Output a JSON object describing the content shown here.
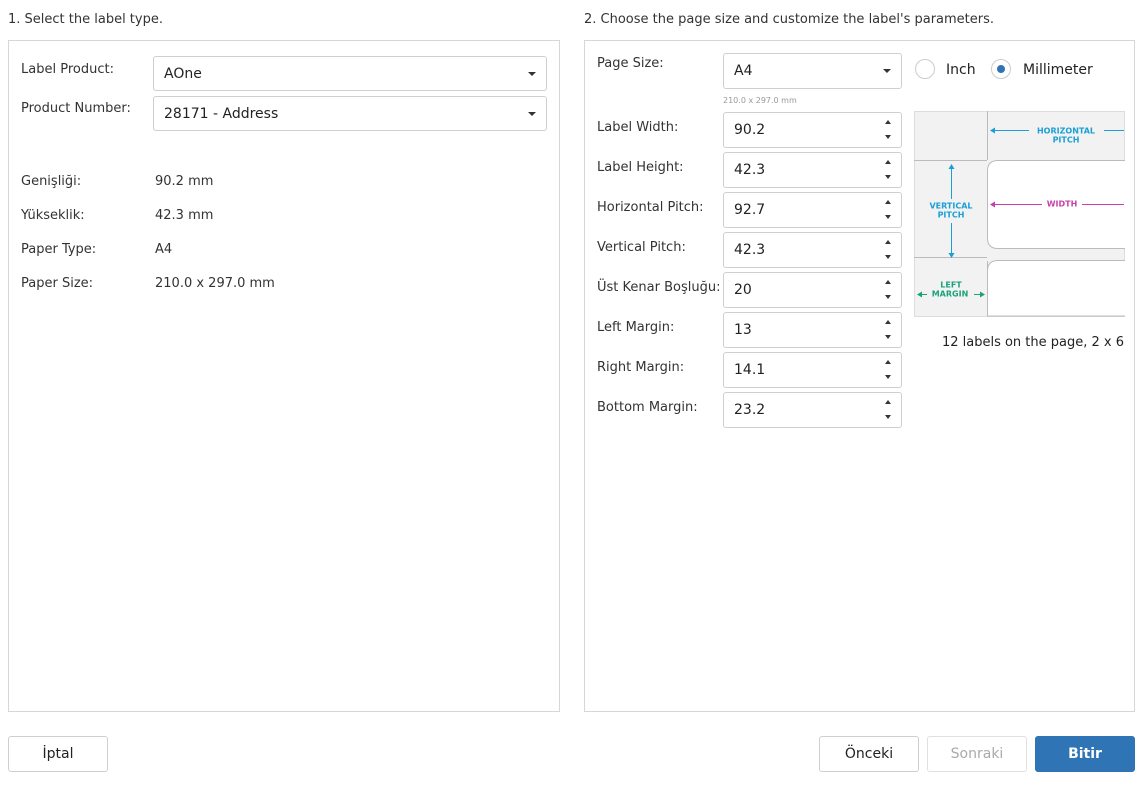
{
  "left": {
    "heading": "1. Select the label type.",
    "label_product": {
      "label": "Label Product:",
      "value": "AOne"
    },
    "product_number": {
      "label": "Product Number:",
      "value": "28171 - Address"
    },
    "info": [
      [
        "Genişliği:",
        "90.2 mm"
      ],
      [
        "Yükseklik:",
        "42.3 mm"
      ],
      [
        "Paper Type:",
        "A4"
      ],
      [
        "Paper Size:",
        "210.0 x 297.0 mm"
      ]
    ]
  },
  "right": {
    "heading": "2. Choose the page size and customize the label's parameters.",
    "page_size": {
      "label": "Page Size:",
      "value": "A4",
      "hint": "210.0 x 297.0 mm"
    },
    "units": [
      "Inch",
      "Millimeter"
    ],
    "fields": [
      [
        "Label Width:",
        90.2
      ],
      [
        "Label Height:",
        42.3
      ],
      [
        "Horizontal Pitch:",
        92.7
      ],
      [
        "Vertical Pitch:",
        42.3
      ],
      [
        "Üst Kenar Boşluğu:",
        20
      ],
      [
        "Left Margin:",
        13
      ],
      [
        "Right Margin:",
        14.1
      ],
      [
        "Bottom Margin:",
        23.2
      ]
    ],
    "diagram": {
      "horizontal_pitch": [
        "HORIZONTAL",
        "PITCH"
      ],
      "vertical_pitch": [
        "VERTICAL",
        "PITCH"
      ],
      "width": "WIDTH",
      "left_margin": [
        "LEFT",
        "MARGIN"
      ]
    },
    "summary": "12 labels on the page, 2 x 6"
  },
  "buttons": [
    "İptal",
    "Önceki",
    "Sonraki",
    "Bitir"
  ]
}
